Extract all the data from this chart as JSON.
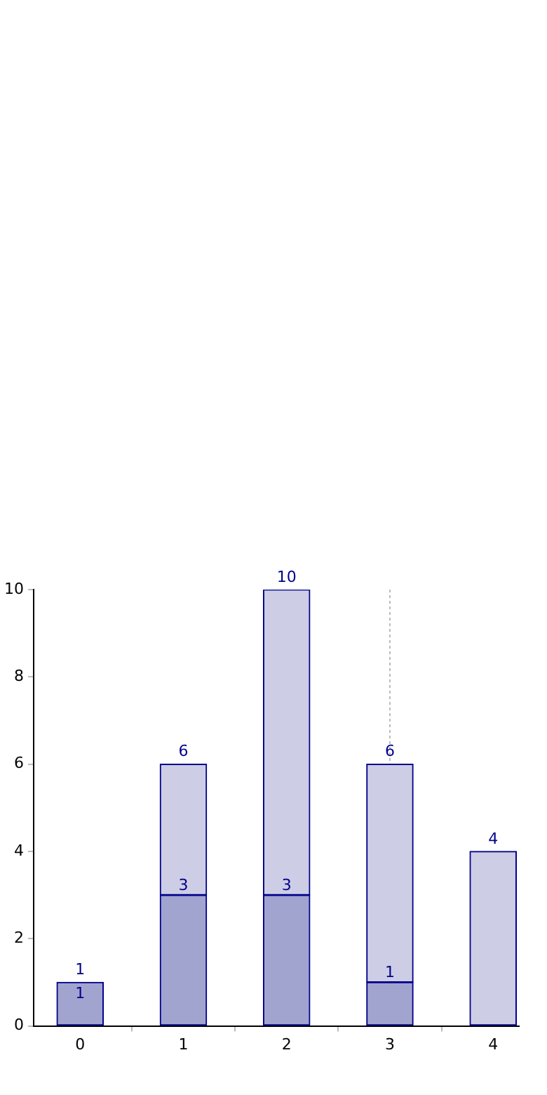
{
  "chart_data": {
    "type": "bar",
    "stacked": true,
    "categories": [
      "0",
      "1",
      "2",
      "3",
      "4"
    ],
    "series": [
      {
        "color": "#a2a4d0",
        "values": [
          1,
          3,
          3,
          1,
          null
        ],
        "value_labels": [
          "1",
          "3",
          "3",
          "1",
          null
        ]
      },
      {
        "color": "#cdcde5",
        "values": [
          null,
          3,
          7,
          5,
          4
        ]
      }
    ],
    "totals": [
      "1",
      "6",
      "10",
      "6",
      "4"
    ],
    "ylim": [
      0,
      10
    ],
    "yticks": [
      0,
      2,
      4,
      6,
      8,
      10
    ],
    "grid": false,
    "ref_lines": [
      {
        "axis": "x",
        "value": "3",
        "color": "#bbbbbb",
        "line_style": "dotted"
      }
    ]
  }
}
